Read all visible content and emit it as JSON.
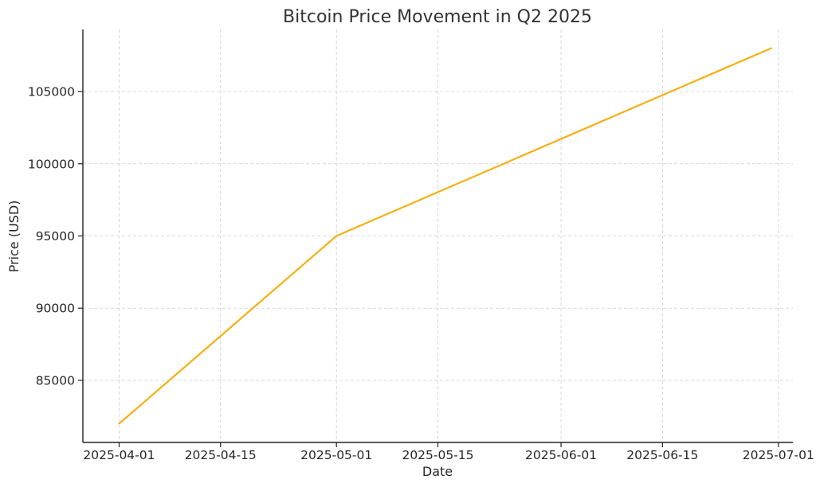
{
  "chart_data": {
    "type": "line",
    "title": "Bitcoin Price Movement in Q2 2025",
    "xlabel": "Date",
    "ylabel": "Price (USD)",
    "x_tick_labels": [
      "2025-04-01",
      "2025-04-15",
      "2025-05-01",
      "2025-05-15",
      "2025-06-01",
      "2025-06-15",
      "2025-07-01"
    ],
    "y_tick_labels": [
      "85000",
      "90000",
      "95000",
      "100000",
      "105000"
    ],
    "xlim": [
      "2025-03-27",
      "2025-07-03"
    ],
    "ylim": [
      80700,
      109300
    ],
    "grid": true,
    "series": [
      {
        "color": "#f5b014",
        "x": [
          "2025-04-01",
          "2025-05-01",
          "2025-06-30"
        ],
        "y": [
          82000,
          95000,
          108000
        ]
      }
    ]
  }
}
